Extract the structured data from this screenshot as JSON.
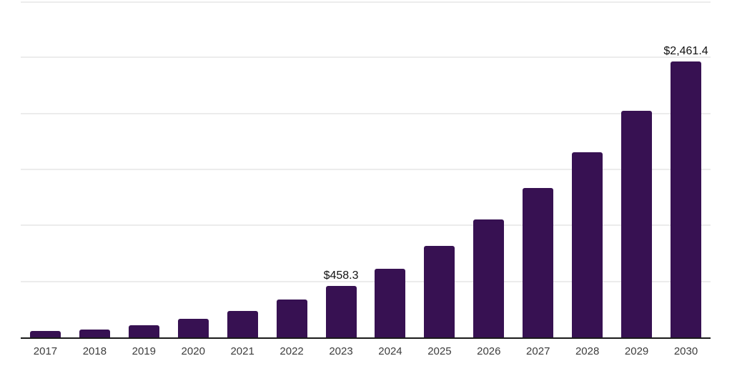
{
  "chart_data": {
    "type": "bar",
    "title": "",
    "xlabel": "",
    "ylabel": "",
    "legend": "none",
    "grid": "horizontal",
    "categories": [
      "2017",
      "2018",
      "2019",
      "2020",
      "2021",
      "2022",
      "2023",
      "2024",
      "2025",
      "2026",
      "2027",
      "2028",
      "2029",
      "2030"
    ],
    "values": [
      57,
      70,
      108,
      165,
      235,
      336,
      458.3,
      615,
      818,
      1053,
      1332,
      1650,
      2024,
      2461.4
    ],
    "data_labels": [
      {
        "category": "2023",
        "text": "$458.3"
      },
      {
        "category": "2030",
        "text": "$2,461.4"
      }
    ],
    "ylim": [
      0,
      3000
    ],
    "gridline_values": [
      500,
      1000,
      1500,
      2000,
      2500,
      3000
    ]
  },
  "style": {
    "bar_color": "#371152",
    "axis_line_color": "#1a1a1a",
    "gridline_color": "#ececec",
    "year_label_color": "#3d3d3d",
    "data_label_color": "#111111",
    "background": "#ffffff"
  }
}
